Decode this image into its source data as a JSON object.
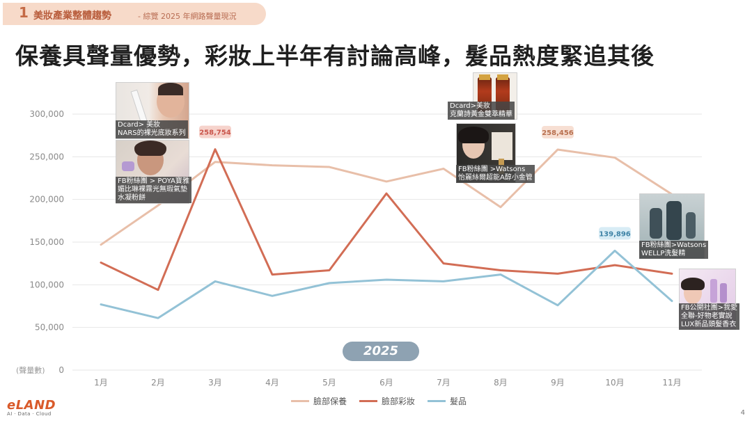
{
  "section": {
    "number": "1",
    "title": "美妝產業整體趨勢",
    "subtitle": "- 綜覽 2025 年網路聲量現況"
  },
  "headline": "保養具聲量優勢，彩妝上半年有討論高峰，髮品熱度緊追其後",
  "chart_data": {
    "type": "line",
    "categories": [
      "1月",
      "2月",
      "3月",
      "4月",
      "5月",
      "6月",
      "7月",
      "8月",
      "9月",
      "10月",
      "11月"
    ],
    "ylim": [
      0,
      300000
    ],
    "yticks": [
      "0",
      "50,000",
      "100,000",
      "150,000",
      "200,000",
      "250,000",
      "300,000"
    ],
    "ytick_values": [
      0,
      50000,
      100000,
      150000,
      200000,
      250000,
      300000
    ],
    "ylabel": "(聲量數)",
    "grid": true,
    "series": [
      {
        "name": "臉部保養",
        "color": "#e8bfa9",
        "values": [
          147000,
          193000,
          244000,
          240000,
          238000,
          221000,
          236000,
          191000,
          258456,
          249000,
          206000
        ]
      },
      {
        "name": "臉部彩妝",
        "color": "#d26d55",
        "values": [
          126000,
          94000,
          258754,
          112000,
          117000,
          207000,
          125000,
          117000,
          113000,
          123000,
          113000
        ]
      },
      {
        "name": "髮品",
        "color": "#93c2d6",
        "values": [
          77000,
          61000,
          104000,
          87000,
          102000,
          106000,
          104000,
          112000,
          76000,
          139896,
          81000
        ]
      }
    ],
    "annotations": [
      {
        "text": "258,754",
        "series": 1,
        "index": 2,
        "bg": "#f6d3cc",
        "color": "#c9544a"
      },
      {
        "text": "258,456",
        "series": 0,
        "index": 8,
        "bg": "#f7dfd3",
        "color": "#b8704f"
      },
      {
        "text": "139,896",
        "series": 2,
        "index": 9,
        "bg": "#d8ecf5",
        "color": "#3f83a6"
      }
    ]
  },
  "year_label": "2025",
  "photos": {
    "p1": {
      "caption": "Dcard> 美妝\nNARS的裸光底妝系列"
    },
    "p2": {
      "caption": "FB粉絲團 > POYA寶雅\n媚比琳裸霧光無瑕氣墊\n水凝粉餅"
    },
    "p3": {
      "caption": "Dcard>美妝\n克蘭詩黃金雙萃精華"
    },
    "p4": {
      "caption": "FB粉絲團 >Watsons\n怡麗絲爾超能A醇小金管"
    },
    "p5": {
      "caption": "FB粉絲團>Watsons\nWELLP洗髮精"
    },
    "p6": {
      "caption": "FB公開社團>我愛\n全聯-好物老實說\nLUX新品頭髮香衣"
    }
  },
  "logo": {
    "main": "eLAND",
    "sub": "AI · Data · Cloud"
  },
  "page_number": "4"
}
